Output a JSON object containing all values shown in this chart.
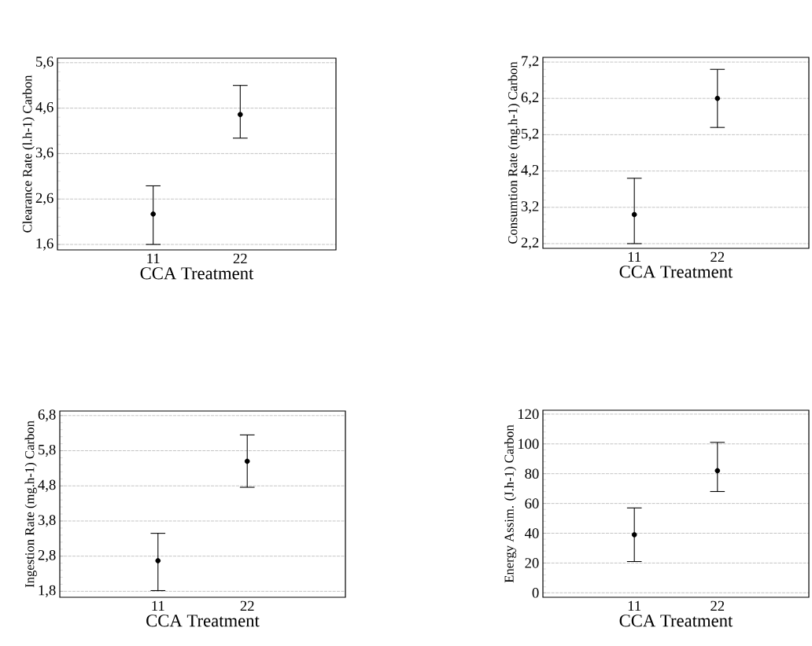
{
  "chart_data": [
    {
      "type": "scatter",
      "xlabel": "CCA Treatment",
      "ylabel": "Clearance Rate (l.h-1) Carbon",
      "categories": [
        "11",
        "22"
      ],
      "values": [
        2.27,
        4.46
      ],
      "errors": [
        [
          1.6,
          2.89
        ],
        [
          3.94,
          5.1
        ]
      ],
      "color": "#000000",
      "marker": "circle",
      "grid": "y",
      "ylim": [
        1.48,
        5.7
      ],
      "yticks": [
        {
          "value": 1.6,
          "label": "1,6"
        },
        {
          "value": 2.6,
          "label": "2,6"
        },
        {
          "value": 3.6,
          "label": "3,6"
        },
        {
          "value": 4.6,
          "label": "4,6"
        },
        {
          "value": 5.6,
          "label": "5,6"
        }
      ]
    },
    {
      "type": "scatter",
      "xlabel": "CCA Treatment",
      "ylabel": "Consumtion Rate (mg.h-1) Carbon",
      "categories": [
        "11",
        "22"
      ],
      "values": [
        3.0,
        6.2
      ],
      "errors": [
        [
          2.2,
          4.0
        ],
        [
          5.4,
          7.0
        ]
      ],
      "color": "#000000",
      "marker": "circle",
      "grid": "y",
      "ylim": [
        2.07,
        7.33
      ],
      "yticks": [
        {
          "value": 2.2,
          "label": "2,2"
        },
        {
          "value": 3.2,
          "label": "3,2"
        },
        {
          "value": 4.2,
          "label": "4,2"
        },
        {
          "value": 5.2,
          "label": "5,2"
        },
        {
          "value": 6.2,
          "label": "6,2"
        },
        {
          "value": 7.2,
          "label": "7,2"
        }
      ]
    },
    {
      "type": "scatter",
      "xlabel": "CCA Treatment",
      "ylabel": "Ingestion Rate (mg.h-1) Carbon",
      "categories": [
        "11",
        "22"
      ],
      "values": [
        2.67,
        5.5
      ],
      "errors": [
        [
          1.82,
          3.45
        ],
        [
          4.76,
          6.25
        ]
      ],
      "color": "#000000",
      "marker": "circle",
      "grid": "y",
      "ylim": [
        1.63,
        6.93
      ],
      "yticks": [
        {
          "value": 1.8,
          "label": "1,8"
        },
        {
          "value": 2.8,
          "label": "2,8"
        },
        {
          "value": 3.8,
          "label": "3,8"
        },
        {
          "value": 4.8,
          "label": "4,8"
        },
        {
          "value": 5.8,
          "label": "5,8"
        },
        {
          "value": 6.8,
          "label": "6,8"
        }
      ]
    },
    {
      "type": "scatter",
      "xlabel": "CCA Treatment",
      "ylabel": "Energy Assim. (J.h-1) Carbon",
      "categories": [
        "11",
        "22"
      ],
      "values": [
        39,
        82
      ],
      "errors": [
        [
          21,
          57
        ],
        [
          68,
          101
        ]
      ],
      "color": "#000000",
      "marker": "circle",
      "grid": "y",
      "ylim": [
        -3,
        122.6
      ],
      "yticks": [
        0,
        20,
        40,
        60,
        80,
        100,
        120
      ]
    }
  ]
}
